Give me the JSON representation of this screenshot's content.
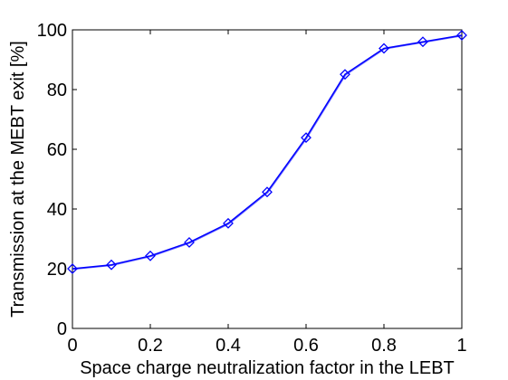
{
  "chart_data": {
    "type": "line",
    "title": "",
    "xlabel": "Space charge neutralization factor in the LEBT",
    "ylabel": "Transmission at the MEBT exit [%]",
    "xlim": [
      0,
      1
    ],
    "ylim": [
      0,
      100
    ],
    "x_ticks": [
      "0",
      "0.2",
      "0.4",
      "0.6",
      "0.8",
      "1"
    ],
    "y_ticks": [
      "0",
      "20",
      "40",
      "60",
      "80",
      "100"
    ],
    "grid": false,
    "legend": "none",
    "series": [
      {
        "color": "#0000ff",
        "marker": "diamond",
        "x": [
          0,
          0.1,
          0.2,
          0.3,
          0.4,
          0.5,
          0.6,
          0.7,
          0.8,
          0.9,
          1.0
        ],
        "y": [
          20,
          21.3,
          24.3,
          28.8,
          35.2,
          45.7,
          63.9,
          85.1,
          93.8,
          96.0,
          98.2
        ]
      }
    ]
  }
}
